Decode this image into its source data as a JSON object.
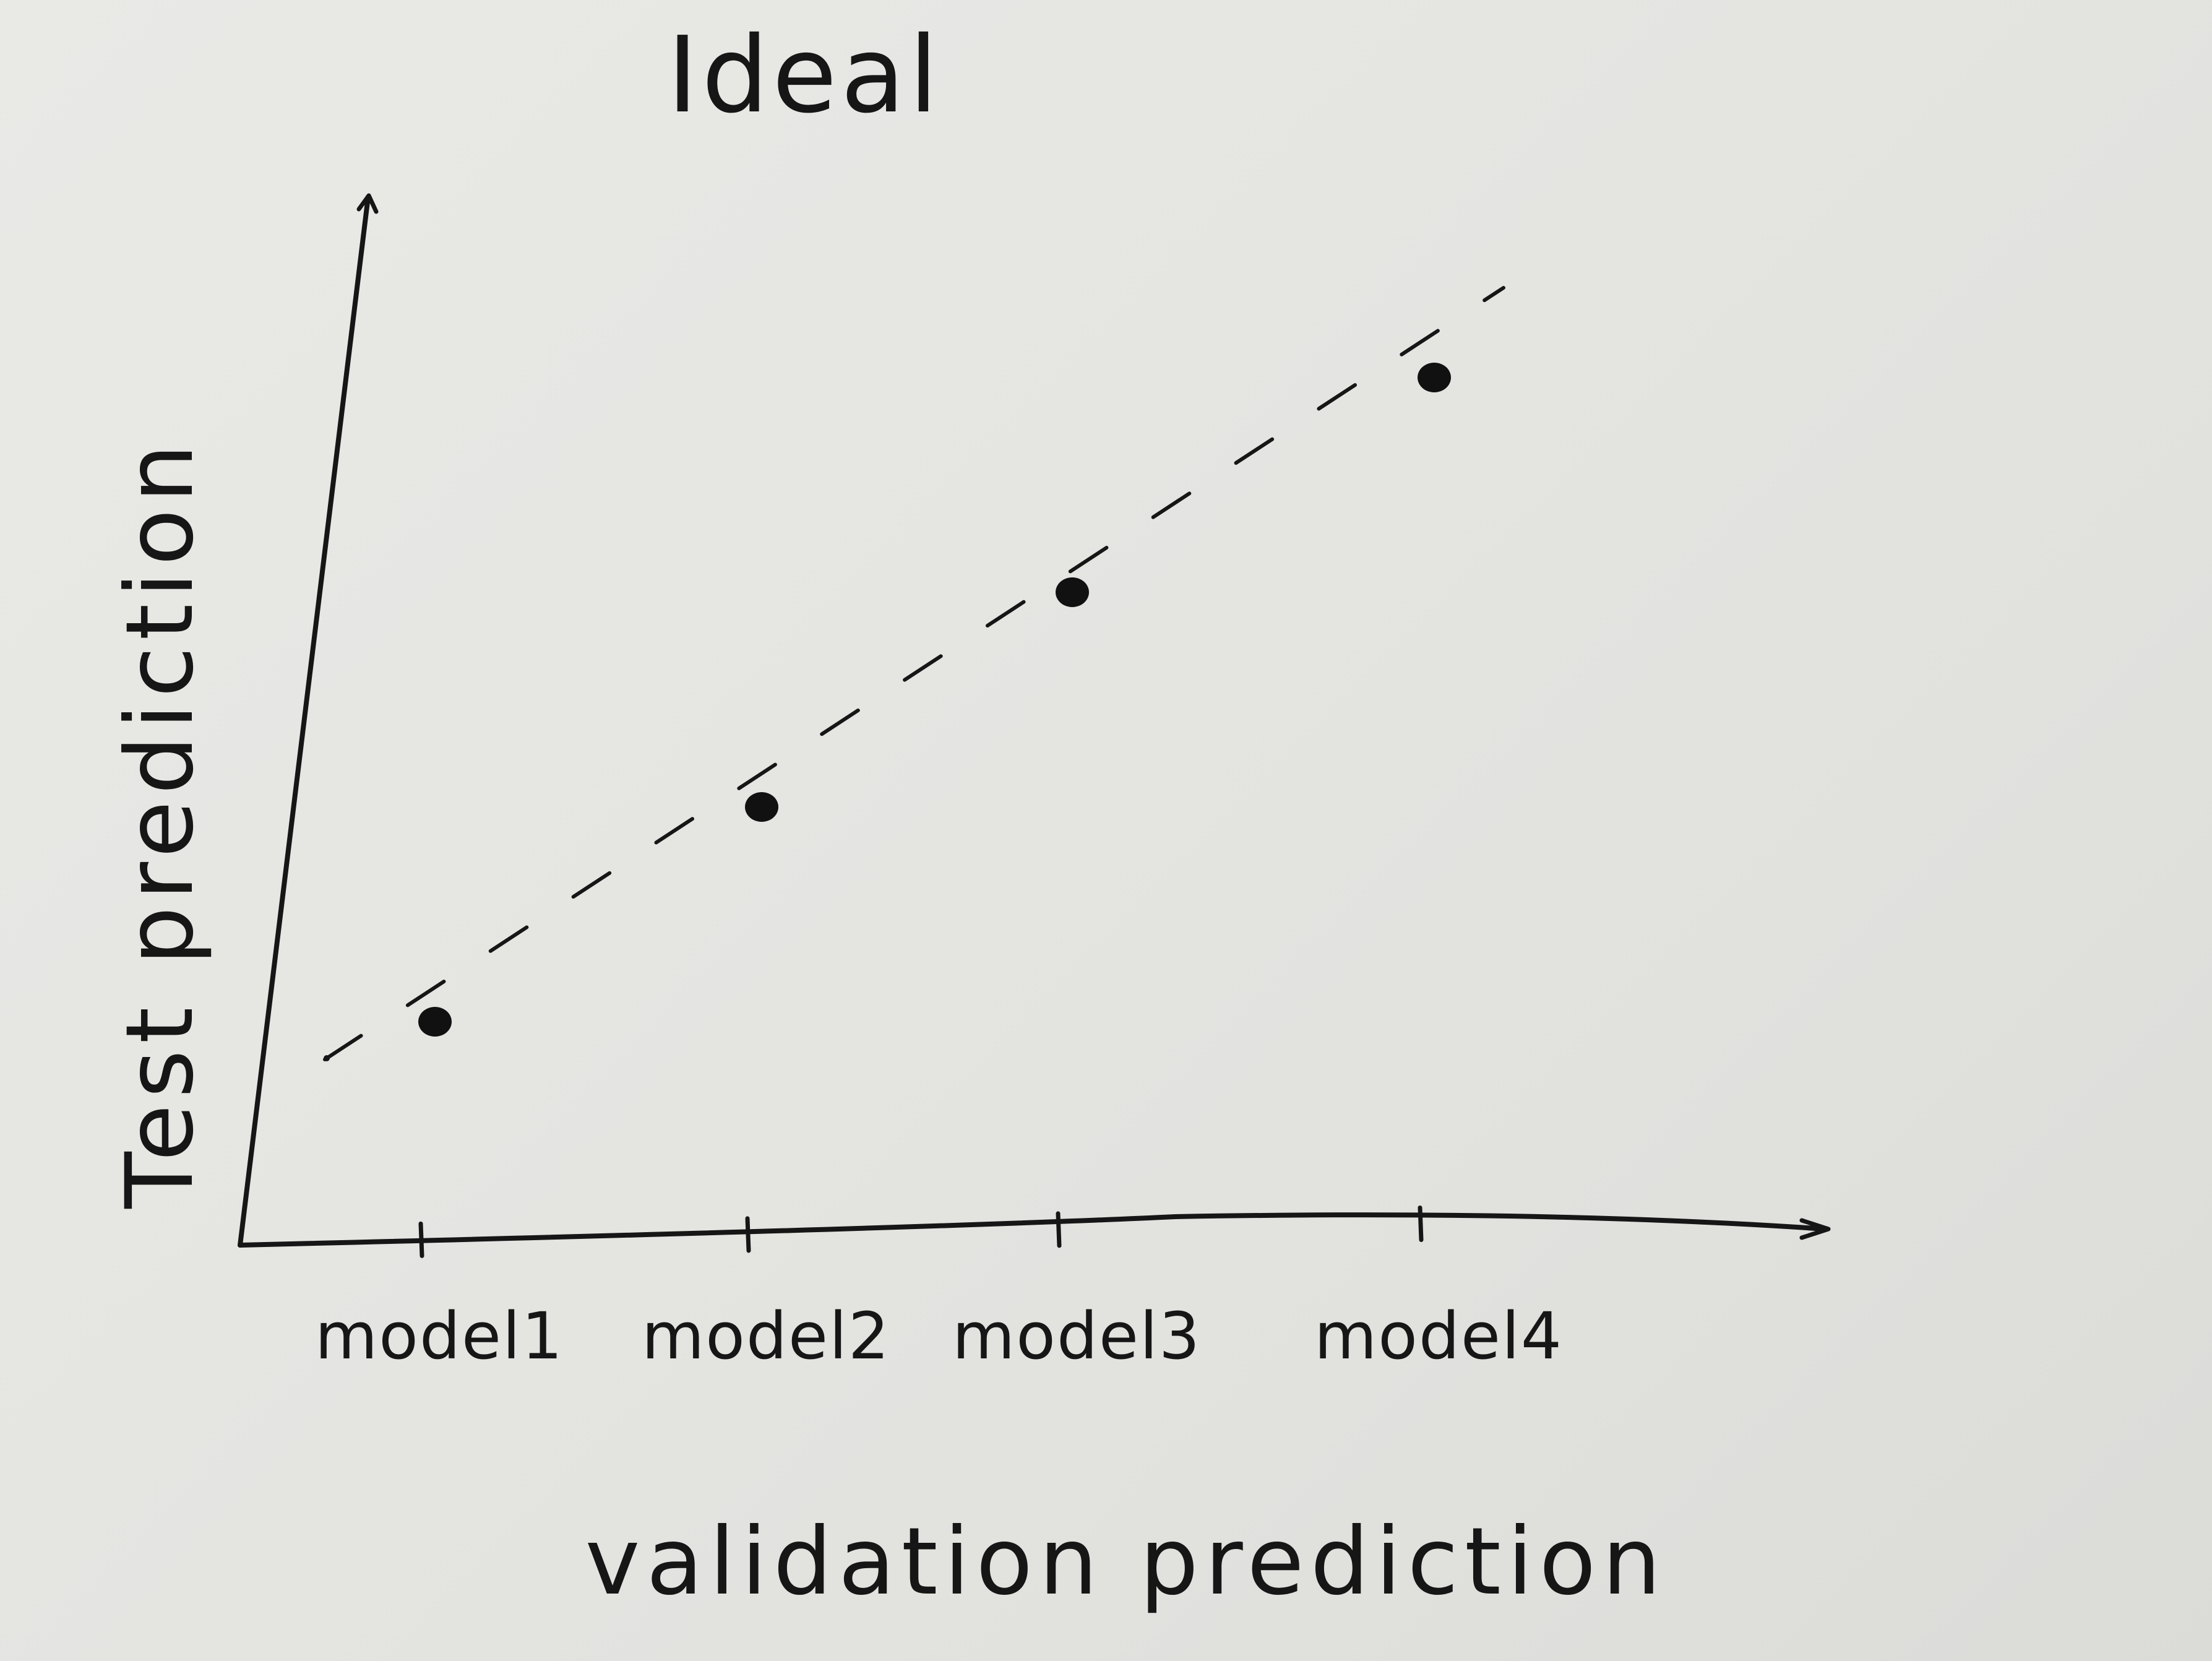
{
  "chart_data": {
    "type": "scatter",
    "title": "Ideal",
    "xlabel": "validation prediction",
    "ylabel": "Test prediction",
    "categories": [
      "model1",
      "model2",
      "model3",
      "model4"
    ],
    "series": [
      {
        "values": [
          1,
          2,
          3,
          4
        ],
        "marker": "filled-circle",
        "color": "#111111"
      }
    ],
    "trend_line": {
      "style": "dashed",
      "meaning": "ideal diagonal (test = validation)"
    },
    "ylim": [
      0,
      5
    ],
    "grid": false,
    "legend": "none",
    "hand_drawn": true
  }
}
